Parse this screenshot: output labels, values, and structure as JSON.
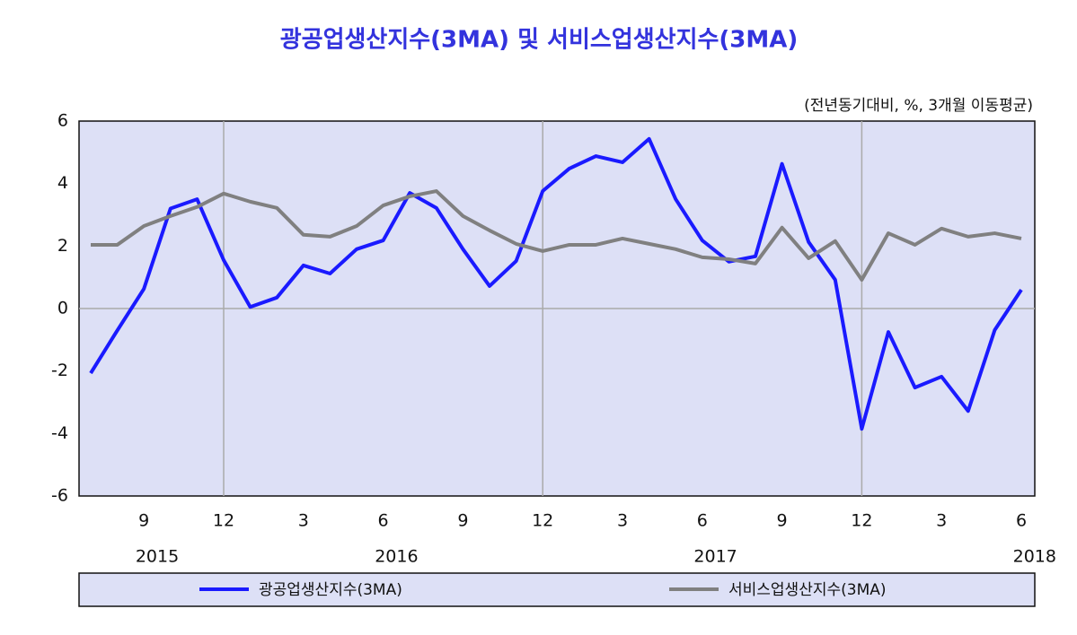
{
  "chart_data": {
    "type": "line",
    "title": "광공업생산지수(3MA)  및  서비스업생산지수(3MA)",
    "subtitle": "(전년동기대비, %, 3개월 이동평균)",
    "categories": [
      null,
      null,
      "9",
      null,
      null,
      "12",
      null,
      null,
      "3",
      null,
      null,
      "6",
      null,
      null,
      "9",
      null,
      null,
      "12",
      null,
      null,
      "3",
      null,
      null,
      "6",
      null,
      null,
      "9",
      null,
      null,
      "12",
      null,
      null,
      "3",
      null,
      null,
      "6"
    ],
    "years": [
      "2015",
      "2016",
      "2017",
      "2018"
    ],
    "series": [
      {
        "name": "광공업생산지수(3MA)",
        "color": "#1a1aff",
        "values": [
          -2.07,
          -0.7,
          0.63,
          3.2,
          3.5,
          1.55,
          0.05,
          0.35,
          1.38,
          1.12,
          1.9,
          2.18,
          3.7,
          3.22,
          1.9,
          0.72,
          1.52,
          3.76,
          4.48,
          4.88,
          4.68,
          5.43,
          3.5,
          2.18,
          1.5,
          1.67,
          4.63,
          2.13,
          0.92,
          -3.85,
          -0.75,
          -2.53,
          -2.18,
          -3.28,
          -0.69,
          0.6
        ]
      },
      {
        "name": "서비스업생산지수(3MA)",
        "color": "#808080",
        "values": [
          2.04,
          2.04,
          2.64,
          2.96,
          3.25,
          3.68,
          3.42,
          3.22,
          2.36,
          2.3,
          2.64,
          3.3,
          3.59,
          3.76,
          2.96,
          2.5,
          2.07,
          1.84,
          2.04,
          2.04,
          2.24,
          2.07,
          1.9,
          1.64,
          1.58,
          1.44,
          2.59,
          1.61,
          2.16,
          0.92,
          2.41,
          2.04,
          2.56,
          2.3,
          2.41,
          2.24
        ]
      }
    ],
    "ylim": [
      -6,
      6
    ],
    "yticks": [
      -6,
      -4,
      -2,
      0,
      2,
      4,
      6
    ]
  }
}
